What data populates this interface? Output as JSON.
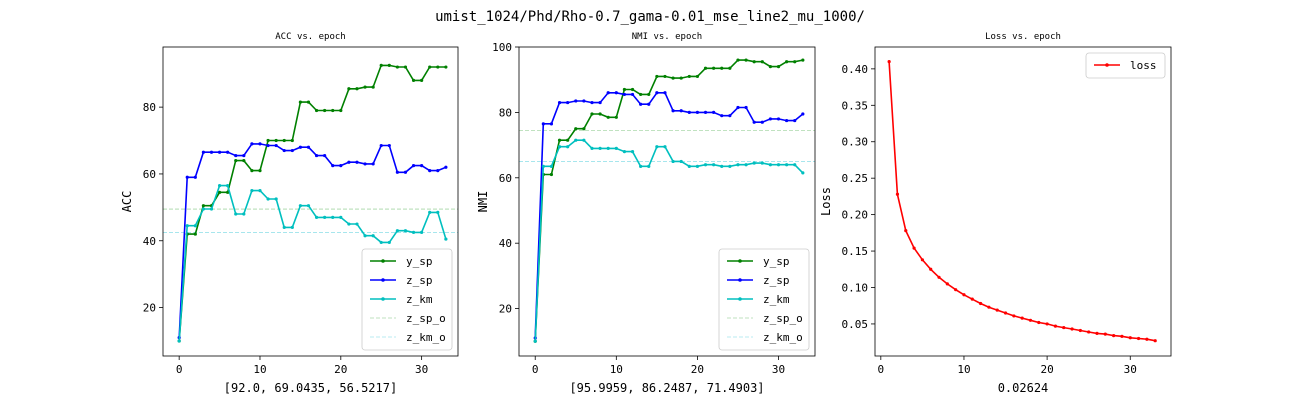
{
  "suptitle": "umist_1024/Phd/Rho-0.7_gama-0.01_mse_line2_mu_1000/",
  "chart_data": [
    {
      "type": "line",
      "title": "ACC vs. epoch",
      "ylabel": "ACC",
      "xlabel": "[92.0, 69.0435, 56.5217]",
      "xlim": [
        -2,
        34.5
      ],
      "ylim": [
        5.5,
        98
      ],
      "xticks": [
        0,
        10,
        20,
        30
      ],
      "yticks": [
        20,
        40,
        60,
        80
      ],
      "legend_loc": "lower right",
      "series": [
        {
          "name": "y_sp",
          "color": "#008000",
          "x": [
            0,
            1,
            2,
            3,
            4,
            5,
            6,
            7,
            8,
            9,
            10,
            11,
            12,
            13,
            14,
            15,
            16,
            17,
            18,
            19,
            20,
            21,
            22,
            23,
            24,
            25,
            26,
            27,
            28,
            29,
            30,
            31,
            32,
            33
          ],
          "values": [
            10,
            42,
            42,
            50.5,
            50.5,
            54.5,
            54.5,
            64,
            64,
            61,
            61,
            70,
            70,
            70,
            70,
            81.5,
            81.5,
            79,
            79,
            79,
            79,
            85.5,
            85.5,
            86,
            86,
            92.5,
            92.5,
            92,
            92,
            88,
            88,
            92,
            92,
            92
          ]
        },
        {
          "name": "z_sp",
          "color": "#0000ff",
          "x": [
            0,
            1,
            2,
            3,
            4,
            5,
            6,
            7,
            8,
            9,
            10,
            11,
            12,
            13,
            14,
            15,
            16,
            17,
            18,
            19,
            20,
            21,
            22,
            23,
            24,
            25,
            26,
            27,
            28,
            29,
            30,
            31,
            32,
            33
          ],
          "values": [
            11,
            59,
            59,
            66.5,
            66.5,
            66.5,
            66.5,
            65.5,
            65.5,
            69,
            69,
            68.5,
            68.5,
            67,
            67,
            68,
            68,
            65.5,
            65.5,
            62.5,
            62.5,
            63.5,
            63.5,
            63,
            63,
            68.5,
            68.5,
            60.5,
            60.5,
            62.5,
            62.5,
            61,
            61,
            62
          ]
        },
        {
          "name": "z_km",
          "color": "#00bfbf",
          "x": [
            0,
            1,
            2,
            3,
            4,
            5,
            6,
            7,
            8,
            9,
            10,
            11,
            12,
            13,
            14,
            15,
            16,
            17,
            18,
            19,
            20,
            21,
            22,
            23,
            24,
            25,
            26,
            27,
            28,
            29,
            30,
            31,
            32,
            33
          ],
          "values": [
            10,
            44.5,
            44.5,
            49.5,
            49.5,
            56.5,
            56.5,
            48,
            48,
            55,
            55,
            52.5,
            52.5,
            44,
            44,
            50.5,
            50.5,
            47,
            47,
            47,
            47,
            45,
            45,
            41.5,
            41.5,
            39.5,
            39.5,
            43,
            43,
            42.5,
            42.5,
            48.5,
            48.5,
            40.5
          ]
        }
      ],
      "hlines": [
        {
          "name": "z_sp_o",
          "color": "#2ca02c",
          "value": 49.5
        },
        {
          "name": "z_km_o",
          "color": "#17becf",
          "value": 42.5
        }
      ]
    },
    {
      "type": "line",
      "title": "NMI vs. epoch",
      "ylabel": "NMI",
      "xlabel": "[95.9959, 86.2487, 71.4903]",
      "xlim": [
        -2,
        34.5
      ],
      "ylim": [
        5.5,
        100
      ],
      "xticks": [
        0,
        10,
        20,
        30
      ],
      "yticks": [
        20,
        40,
        60,
        80,
        100
      ],
      "legend_loc": "lower right",
      "series": [
        {
          "name": "y_sp",
          "color": "#008000",
          "x": [
            0,
            1,
            2,
            3,
            4,
            5,
            6,
            7,
            8,
            9,
            10,
            11,
            12,
            13,
            14,
            15,
            16,
            17,
            18,
            19,
            20,
            21,
            22,
            23,
            24,
            25,
            26,
            27,
            28,
            29,
            30,
            31,
            32,
            33
          ],
          "values": [
            10,
            61,
            61,
            71.5,
            71.5,
            75,
            75,
            79.5,
            79.5,
            78.5,
            78.5,
            87,
            87,
            85.5,
            85.5,
            91,
            91,
            90.5,
            90.5,
            91,
            91,
            93.5,
            93.5,
            93.5,
            93.5,
            96,
            96,
            95.5,
            95.5,
            94,
            94,
            95.5,
            95.5,
            96
          ]
        },
        {
          "name": "z_sp",
          "color": "#0000ff",
          "x": [
            0,
            1,
            2,
            3,
            4,
            5,
            6,
            7,
            8,
            9,
            10,
            11,
            12,
            13,
            14,
            15,
            16,
            17,
            18,
            19,
            20,
            21,
            22,
            23,
            24,
            25,
            26,
            27,
            28,
            29,
            30,
            31,
            32,
            33
          ],
          "values": [
            11,
            76.5,
            76.5,
            83,
            83,
            83.5,
            83.5,
            83,
            83,
            86,
            86,
            85.5,
            85.5,
            82.5,
            82.5,
            86,
            86,
            80.5,
            80.5,
            80,
            80,
            80,
            80,
            79,
            79,
            81.5,
            81.5,
            77,
            77,
            78,
            78,
            77.5,
            77.5,
            79.5
          ]
        },
        {
          "name": "z_km",
          "color": "#00bfbf",
          "x": [
            0,
            1,
            2,
            3,
            4,
            5,
            6,
            7,
            8,
            9,
            10,
            11,
            12,
            13,
            14,
            15,
            16,
            17,
            18,
            19,
            20,
            21,
            22,
            23,
            24,
            25,
            26,
            27,
            28,
            29,
            30,
            31,
            32,
            33
          ],
          "values": [
            10,
            63.5,
            63.5,
            69.5,
            69.5,
            71.5,
            71.5,
            69,
            69,
            69,
            69,
            68,
            68,
            63.5,
            63.5,
            69.5,
            69.5,
            65,
            65,
            63.5,
            63.5,
            64,
            64,
            63.5,
            63.5,
            64,
            64,
            64.5,
            64.5,
            64,
            64,
            64,
            64,
            61.5
          ]
        }
      ],
      "hlines": [
        {
          "name": "z_sp_o",
          "color": "#2ca02c",
          "value": 74.5
        },
        {
          "name": "z_km_o",
          "color": "#17becf",
          "value": 65
        }
      ]
    },
    {
      "type": "line",
      "title": "Loss vs. epoch",
      "ylabel": "Loss",
      "xlabel": "0.02624",
      "xlim": [
        -0.7,
        34.9
      ],
      "ylim": [
        0.006,
        0.43
      ],
      "xticks": [
        0,
        10,
        20,
        30
      ],
      "yticks": [
        0.05,
        0.1,
        0.15,
        0.2,
        0.25,
        0.3,
        0.35,
        0.4
      ],
      "yticklabels": [
        "0.05",
        "0.10",
        "0.15",
        "0.20",
        "0.25",
        "0.30",
        "0.35",
        "0.40"
      ],
      "legend_loc": "upper right",
      "series": [
        {
          "name": "loss",
          "color": "#ff0000",
          "x": [
            1,
            2,
            3,
            4,
            5,
            6,
            7,
            8,
            9,
            10,
            11,
            12,
            13,
            14,
            15,
            16,
            17,
            18,
            19,
            20,
            21,
            22,
            23,
            24,
            25,
            26,
            27,
            28,
            29,
            30,
            31,
            32,
            33
          ],
          "values": [
            0.41,
            0.228,
            0.178,
            0.154,
            0.138,
            0.125,
            0.114,
            0.105,
            0.097,
            0.09,
            0.084,
            0.078,
            0.073,
            0.069,
            0.065,
            0.061,
            0.058,
            0.055,
            0.052,
            0.05,
            0.047,
            0.045,
            0.043,
            0.041,
            0.039,
            0.037,
            0.036,
            0.034,
            0.033,
            0.031,
            0.03,
            0.029,
            0.027
          ]
        }
      ],
      "hlines": []
    }
  ]
}
